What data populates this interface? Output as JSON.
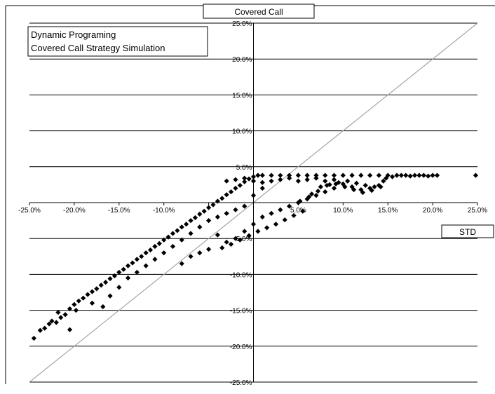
{
  "chart_data": {
    "type": "scatter",
    "title": "Covered Call",
    "xlabel": "STD",
    "ylabel": "Covered Call",
    "legend_lines": [
      "Dynamic Programing",
      "Covered Call Strategy Simulation"
    ],
    "xlim": [
      -0.25,
      0.25
    ],
    "ylim": [
      -0.25,
      0.25
    ],
    "x_ticks": [
      -0.25,
      -0.2,
      -0.15,
      -0.1,
      -0.05,
      0.05,
      0.1,
      0.15,
      0.2,
      0.25
    ],
    "x_tick_labels": [
      "-25.0%",
      "-20.0%",
      "-15.0%",
      "-10.0%",
      "",
      "5.0%",
      "10.0%",
      "15.0%",
      "20.0%",
      "25.0%"
    ],
    "y_ticks": [
      0.25,
      0.2,
      0.15,
      0.1,
      0.05,
      -0.05,
      -0.1,
      -0.15,
      -0.2,
      -0.25
    ],
    "y_tick_labels": [
      "25.0%",
      "20.0%",
      "15.0%",
      "10.0%",
      "5.0%",
      "-5.0%",
      "-10.0%",
      "-15.0%",
      "-20.0%",
      "-25.0%"
    ],
    "grid": "horizontal",
    "legend_position": "top-left",
    "reference_line": {
      "from": [
        -0.25,
        -0.25
      ],
      "to": [
        0.25,
        0.25
      ],
      "color": "#a6a6a6"
    },
    "marker": {
      "shape": "diamond",
      "color": "#000000"
    },
    "series": [
      {
        "values": [
          [
            -0.245,
            -0.189
          ],
          [
            -0.238,
            -0.178
          ],
          [
            -0.233,
            -0.175
          ],
          [
            -0.228,
            -0.169
          ],
          [
            -0.225,
            -0.165
          ],
          [
            -0.22,
            -0.167
          ],
          [
            -0.218,
            -0.153
          ],
          [
            -0.215,
            -0.16
          ],
          [
            -0.21,
            -0.156
          ],
          [
            -0.205,
            -0.177
          ],
          [
            -0.205,
            -0.148
          ],
          [
            -0.2,
            -0.142
          ],
          [
            -0.198,
            -0.15
          ],
          [
            -0.195,
            -0.137
          ],
          [
            -0.19,
            -0.133
          ],
          [
            -0.185,
            -0.128
          ],
          [
            -0.18,
            -0.124
          ],
          [
            -0.18,
            -0.14
          ],
          [
            -0.175,
            -0.12
          ],
          [
            -0.17,
            -0.115
          ],
          [
            -0.168,
            -0.145
          ],
          [
            -0.165,
            -0.111
          ],
          [
            -0.16,
            -0.106
          ],
          [
            -0.16,
            -0.13
          ],
          [
            -0.155,
            -0.102
          ],
          [
            -0.15,
            -0.097
          ],
          [
            -0.15,
            -0.118
          ],
          [
            -0.145,
            -0.093
          ],
          [
            -0.14,
            -0.088
          ],
          [
            -0.14,
            -0.105
          ],
          [
            -0.135,
            -0.084
          ],
          [
            -0.13,
            -0.079
          ],
          [
            -0.13,
            -0.097
          ],
          [
            -0.125,
            -0.075
          ],
          [
            -0.12,
            -0.07
          ],
          [
            -0.12,
            -0.088
          ],
          [
            -0.115,
            -0.066
          ],
          [
            -0.11,
            -0.061
          ],
          [
            -0.11,
            -0.079
          ],
          [
            -0.105,
            -0.057
          ],
          [
            -0.1,
            -0.052
          ],
          [
            -0.1,
            -0.07
          ],
          [
            -0.095,
            -0.048
          ],
          [
            -0.09,
            -0.043
          ],
          [
            -0.09,
            -0.061
          ],
          [
            -0.085,
            -0.039
          ],
          [
            -0.08,
            -0.034
          ],
          [
            -0.08,
            -0.052
          ],
          [
            -0.075,
            -0.03
          ],
          [
            -0.07,
            -0.025
          ],
          [
            -0.07,
            -0.043
          ],
          [
            -0.065,
            -0.021
          ],
          [
            -0.06,
            -0.016
          ],
          [
            -0.06,
            -0.034
          ],
          [
            -0.055,
            -0.012
          ],
          [
            -0.05,
            -0.007
          ],
          [
            -0.05,
            -0.025
          ],
          [
            -0.045,
            -0.003
          ],
          [
            -0.04,
            0.002
          ],
          [
            -0.04,
            -0.02
          ],
          [
            -0.035,
            0.006
          ],
          [
            -0.03,
            0.011
          ],
          [
            -0.03,
            -0.015
          ],
          [
            -0.025,
            0.015
          ],
          [
            -0.02,
            0.02
          ],
          [
            -0.02,
            -0.01
          ],
          [
            -0.015,
            0.024
          ],
          [
            -0.01,
            0.029
          ],
          [
            -0.01,
            -0.005
          ],
          [
            -0.005,
            0.033
          ],
          [
            0.0,
            0.036
          ],
          [
            0.0,
            0.01
          ],
          [
            0.005,
            0.038
          ],
          [
            0.01,
            0.038
          ],
          [
            0.01,
            0.02
          ],
          [
            0.02,
            0.038
          ],
          [
            0.03,
            0.038
          ],
          [
            0.04,
            0.038
          ],
          [
            0.05,
            0.038
          ],
          [
            0.06,
            0.038
          ],
          [
            0.07,
            0.038
          ],
          [
            0.08,
            0.038
          ],
          [
            0.09,
            0.038
          ],
          [
            0.1,
            0.038
          ],
          [
            0.11,
            0.038
          ],
          [
            0.12,
            0.038
          ],
          [
            0.13,
            0.038
          ],
          [
            0.14,
            0.038
          ],
          [
            0.15,
            0.038
          ],
          [
            0.16,
            0.038
          ],
          [
            0.17,
            0.038
          ],
          [
            0.18,
            0.038
          ],
          [
            0.19,
            0.038
          ],
          [
            0.205,
            0.038
          ],
          [
            0.248,
            0.038
          ],
          [
            -0.03,
            0.03
          ],
          [
            -0.02,
            0.032
          ],
          [
            -0.01,
            0.034
          ],
          [
            0.0,
            0.03
          ],
          [
            0.01,
            0.028
          ],
          [
            0.02,
            0.03
          ],
          [
            0.03,
            0.032
          ],
          [
            0.04,
            0.034
          ],
          [
            0.05,
            0.03
          ],
          [
            0.06,
            0.032
          ],
          [
            0.07,
            0.034
          ],
          [
            0.08,
            0.03
          ],
          [
            0.09,
            0.032
          ],
          [
            0.1,
            0.026
          ],
          [
            0.11,
            0.022
          ],
          [
            0.12,
            0.018
          ],
          [
            0.13,
            0.02
          ],
          [
            0.14,
            0.024
          ],
          [
            0.145,
            0.03
          ],
          [
            0.09,
            0.02
          ],
          [
            0.08,
            0.015
          ],
          [
            0.07,
            0.01
          ],
          [
            0.06,
            0.005
          ],
          [
            0.05,
            0.0
          ],
          [
            0.04,
            -0.005
          ],
          [
            0.03,
            -0.01
          ],
          [
            0.02,
            -0.015
          ],
          [
            0.01,
            -0.02
          ],
          [
            0.0,
            -0.03
          ],
          [
            -0.01,
            -0.04
          ],
          [
            -0.02,
            -0.05
          ],
          [
            -0.03,
            -0.055
          ],
          [
            -0.04,
            -0.045
          ],
          [
            -0.05,
            -0.065
          ],
          [
            -0.06,
            -0.07
          ],
          [
            -0.07,
            -0.075
          ],
          [
            -0.08,
            -0.085
          ],
          [
            0.065,
            0.012
          ],
          [
            0.075,
            0.022
          ],
          [
            0.085,
            0.025
          ],
          [
            0.095,
            0.028
          ],
          [
            0.105,
            0.03
          ],
          [
            0.115,
            0.027
          ],
          [
            0.125,
            0.024
          ],
          [
            0.135,
            0.022
          ],
          [
            0.055,
            -0.012
          ],
          [
            0.045,
            -0.018
          ],
          [
            0.035,
            -0.024
          ],
          [
            0.025,
            -0.03
          ],
          [
            0.015,
            -0.035
          ],
          [
            0.005,
            -0.04
          ],
          [
            -0.005,
            -0.046
          ],
          [
            -0.015,
            -0.052
          ],
          [
            -0.025,
            -0.058
          ],
          [
            -0.035,
            -0.063
          ],
          [
            0.052,
            0.002
          ],
          [
            0.062,
            0.008
          ],
          [
            0.072,
            0.016
          ],
          [
            0.082,
            0.024
          ],
          [
            0.092,
            0.026
          ],
          [
            0.102,
            0.022
          ],
          [
            0.112,
            0.018
          ],
          [
            0.122,
            0.014
          ],
          [
            0.132,
            0.017
          ],
          [
            0.142,
            0.022
          ],
          [
            0.165,
            0.038
          ],
          [
            0.175,
            0.037
          ],
          [
            0.185,
            0.038
          ],
          [
            0.195,
            0.037
          ],
          [
            0.2,
            0.038
          ],
          [
            0.155,
            0.036
          ],
          [
            0.148,
            0.034
          ]
        ]
      }
    ]
  }
}
